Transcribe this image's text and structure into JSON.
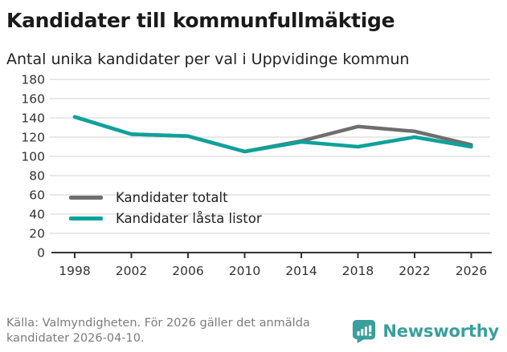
{
  "header": {
    "title": "Kandidater till kommunfullmäktige",
    "subtitle": "Antal unika kandidater per val i Uppvidinge kommun"
  },
  "chart_data": {
    "type": "line",
    "categories": [
      "1998",
      "2002",
      "2006",
      "2010",
      "2014",
      "2018",
      "2022",
      "2026"
    ],
    "series": [
      {
        "name": "Kandidater totalt",
        "color": "#6e6e6e",
        "values": [
          141,
          123,
          121,
          105,
          116,
          131,
          126,
          112
        ]
      },
      {
        "name": "Kandidater låsta listor",
        "color": "#0da29a",
        "values": [
          141,
          123,
          121,
          105,
          115,
          110,
          120,
          110
        ]
      }
    ],
    "ylim": [
      0,
      180
    ],
    "ytick_step": 20,
    "yticks": [
      0,
      20,
      40,
      60,
      80,
      100,
      120,
      140,
      160,
      180
    ],
    "grid": "horizontal",
    "legend_position": "inside-left-middle",
    "colors": {
      "gridline": "#dcdcdc",
      "axis": "#333333",
      "tick_label": "#333333"
    }
  },
  "footer": {
    "source": "Källa: Valmyndigheten. För 2026 gäller det anmälda kandidater 2026-04-10.",
    "brand": "Newsworthy",
    "brand_color": "#3a9f9d"
  }
}
